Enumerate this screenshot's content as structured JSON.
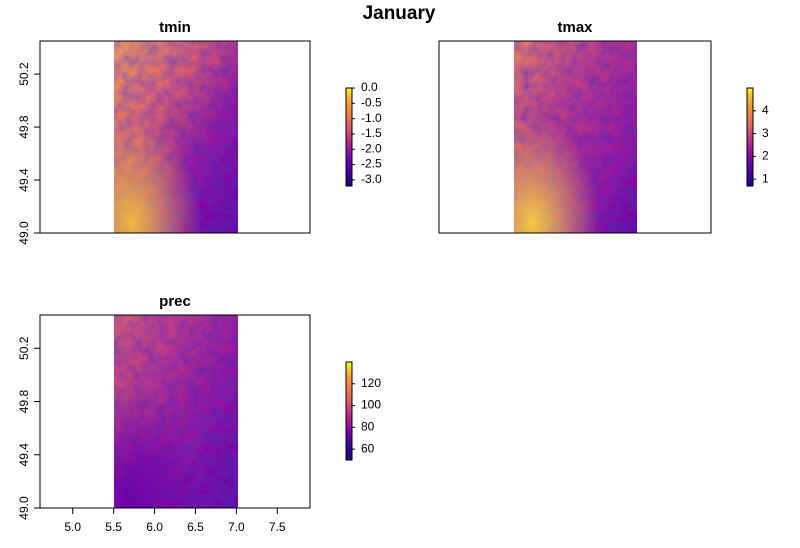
{
  "figure": {
    "title": "January"
  },
  "colors": {
    "palette": [
      "#0d0887",
      "#3b049a",
      "#6a00a8",
      "#9c179e",
      "#c33c83",
      "#e16462",
      "#f1844b",
      "#fca636",
      "#f0f921"
    ],
    "frame": "#000000",
    "background": "#ffffff"
  },
  "chart_data": [
    {
      "type": "heatmap",
      "title": "tmin",
      "xlim": [
        4.6,
        7.9
      ],
      "ylim": [
        49.0,
        50.45
      ],
      "raster_extent": {
        "x": [
          5.5,
          7.0
        ],
        "y": [
          49.0,
          50.45
        ]
      },
      "x_ticks": [],
      "y_ticks": [
        "49.0",
        "49.4",
        "49.8",
        "50.2"
      ],
      "legend": {
        "min": -3.2,
        "max": 0.0,
        "ticks": [
          "0.0",
          "-0.5",
          "-1.0",
          "-1.5",
          "-2.0",
          "-2.5",
          "-3.0"
        ]
      }
    },
    {
      "type": "heatmap",
      "title": "tmax",
      "xlim": [
        4.6,
        7.9
      ],
      "ylim": [
        49.0,
        50.45
      ],
      "raster_extent": {
        "x": [
          5.5,
          7.0
        ],
        "y": [
          49.0,
          50.45
        ]
      },
      "x_ticks": [],
      "y_ticks": [],
      "legend": {
        "min": 0.7,
        "max": 5.0,
        "ticks": [
          "4",
          "3",
          "2",
          "1"
        ]
      }
    },
    {
      "type": "heatmap",
      "title": "prec",
      "xlim": [
        4.6,
        7.9
      ],
      "ylim": [
        49.0,
        50.45
      ],
      "raster_extent": {
        "x": [
          5.5,
          7.0
        ],
        "y": [
          49.0,
          50.45
        ]
      },
      "x_ticks": [
        "5.0",
        "5.5",
        "6.0",
        "6.5",
        "7.0",
        "7.5"
      ],
      "y_ticks": [
        "49.0",
        "49.4",
        "49.8",
        "50.2"
      ],
      "legend": {
        "min": 50,
        "max": 140,
        "ticks": [
          "120",
          "100",
          "80",
          "60"
        ]
      }
    }
  ]
}
